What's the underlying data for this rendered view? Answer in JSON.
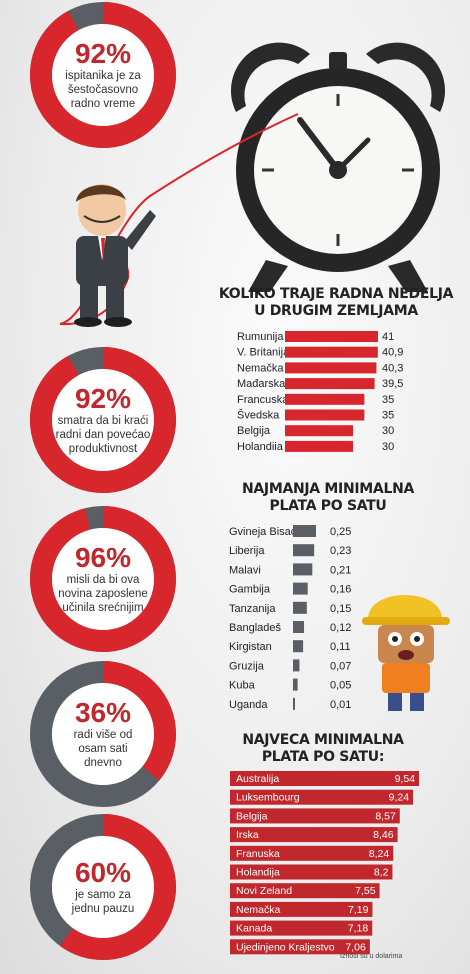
{
  "stats": [
    {
      "percent": "92%",
      "value": 92,
      "text": [
        "ispitanika je za",
        "šestočasovno",
        "radno vreme"
      ],
      "color": "#d7262c"
    },
    {
      "percent": "92%",
      "value": 92,
      "text": [
        "smatra da bi kraći",
        "radni dan povećao",
        "produktivnost"
      ],
      "color": "#d7262c"
    },
    {
      "percent": "96%",
      "value": 96,
      "text": [
        "misli da bi ova",
        "novina zaposlene",
        "učinila srećnijim"
      ],
      "color": "#d7262c"
    },
    {
      "percent": "36%",
      "value": 36,
      "text": [
        "radi više od",
        "osam sati",
        "dnevno"
      ],
      "color": "#d7262c"
    },
    {
      "percent": "60%",
      "value": 60,
      "text": [
        "je samo za",
        "jednu pauzu"
      ],
      "color": "#d7262c"
    }
  ],
  "colors": {
    "red": "#d7262c",
    "gray": "#5a5f66",
    "text": "#222222"
  },
  "chart_data": [
    {
      "type": "bar",
      "title": "KOLIKO TRAJE RADNA NEDELJA U DRUGIM ZEMLJAMA",
      "categories": [
        "Rumunija",
        "V. Britanija",
        "Nemačka",
        "Mađarska",
        "Francuska",
        "Švedska",
        "Belgija",
        "Holandiia"
      ],
      "values": [
        41,
        40.9,
        40.3,
        39.5,
        35,
        35,
        30,
        30
      ],
      "value_labels": [
        "41",
        "40,9",
        "40,3",
        "39,5",
        "35",
        "35",
        "30",
        "30"
      ],
      "color": "#d7262c"
    },
    {
      "type": "bar",
      "title": "NAJMANJA MINIMALNA PLATA PO SATU",
      "categories": [
        "Gvineja Bisao",
        "Liberija",
        "Malavi",
        "Gambija",
        "Tanzanija",
        "Bangladeš",
        "Kirgistan",
        "Gruzija",
        "Kuba",
        "Uganda"
      ],
      "values": [
        0.25,
        0.23,
        0.21,
        0.16,
        0.15,
        0.12,
        0.11,
        0.07,
        0.05,
        0.01
      ],
      "value_labels": [
        "0,25",
        "0,23",
        "0,21",
        "0,16",
        "0,15",
        "0,12",
        "0,11",
        "0,07",
        "0,05",
        "0,01"
      ],
      "color": "#5a5f66"
    },
    {
      "type": "bar",
      "title": "NAJVECA MINIMALNA PLATA PO SATU:",
      "categories": [
        "Australija",
        "Luksembourg",
        "Belgija",
        "Irska",
        "Franuska",
        "Holandija",
        "Novi Zeland",
        "Nemačka",
        "Kanada",
        "Ujedinjeno Kraljestvo"
      ],
      "values": [
        9.54,
        9.24,
        8.57,
        8.46,
        8.24,
        8.2,
        7.55,
        7.19,
        7.18,
        7.06
      ],
      "value_labels": [
        "9,54",
        "9,24",
        "8,57",
        "8,46",
        "8,24",
        "8,2",
        "7,55",
        "7,19",
        "7,18",
        "7,06"
      ],
      "color": "#c0282d"
    }
  ],
  "footnote": "Iznosi su u dolarima"
}
